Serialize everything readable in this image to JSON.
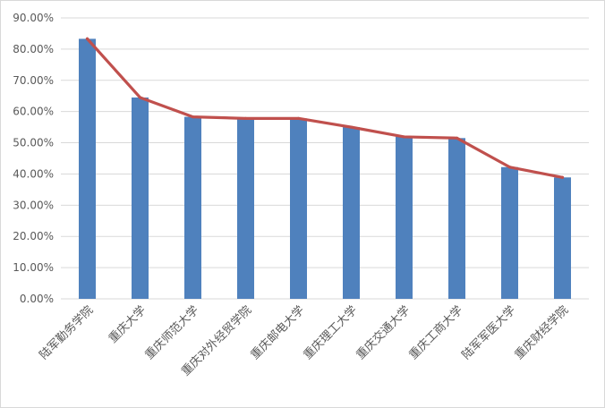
{
  "chart_data": {
    "type": "bar",
    "title": "",
    "xlabel": "",
    "ylabel": "",
    "categories": [
      "陆军勤务学院",
      "重庆大学",
      "重庆师范大学",
      "重庆对外经贸学院",
      "重庆邮电大学",
      "重庆理工大学",
      "重庆交通大学",
      "重庆工商大学",
      "陆军军医大学",
      "重庆财经学院"
    ],
    "series": [
      {
        "type": "bar",
        "values": [
          0.833,
          0.645,
          0.583,
          0.578,
          0.578,
          0.55,
          0.519,
          0.515,
          0.422,
          0.389
        ]
      },
      {
        "type": "line",
        "values": [
          0.833,
          0.645,
          0.583,
          0.578,
          0.578,
          0.55,
          0.519,
          0.515,
          0.422,
          0.389
        ]
      }
    ],
    "ylim": [
      0,
      0.9
    ],
    "yticks": [
      "0.00%",
      "10.00%",
      "20.00%",
      "30.00%",
      "40.00%",
      "50.00%",
      "60.00%",
      "70.00%",
      "80.00%",
      "90.00%"
    ],
    "grid": true,
    "legend": "none",
    "colors": {
      "bar": "#4f81bd",
      "line": "#c0504d",
      "grid": "#d9d9d9",
      "text": "#595959"
    }
  }
}
